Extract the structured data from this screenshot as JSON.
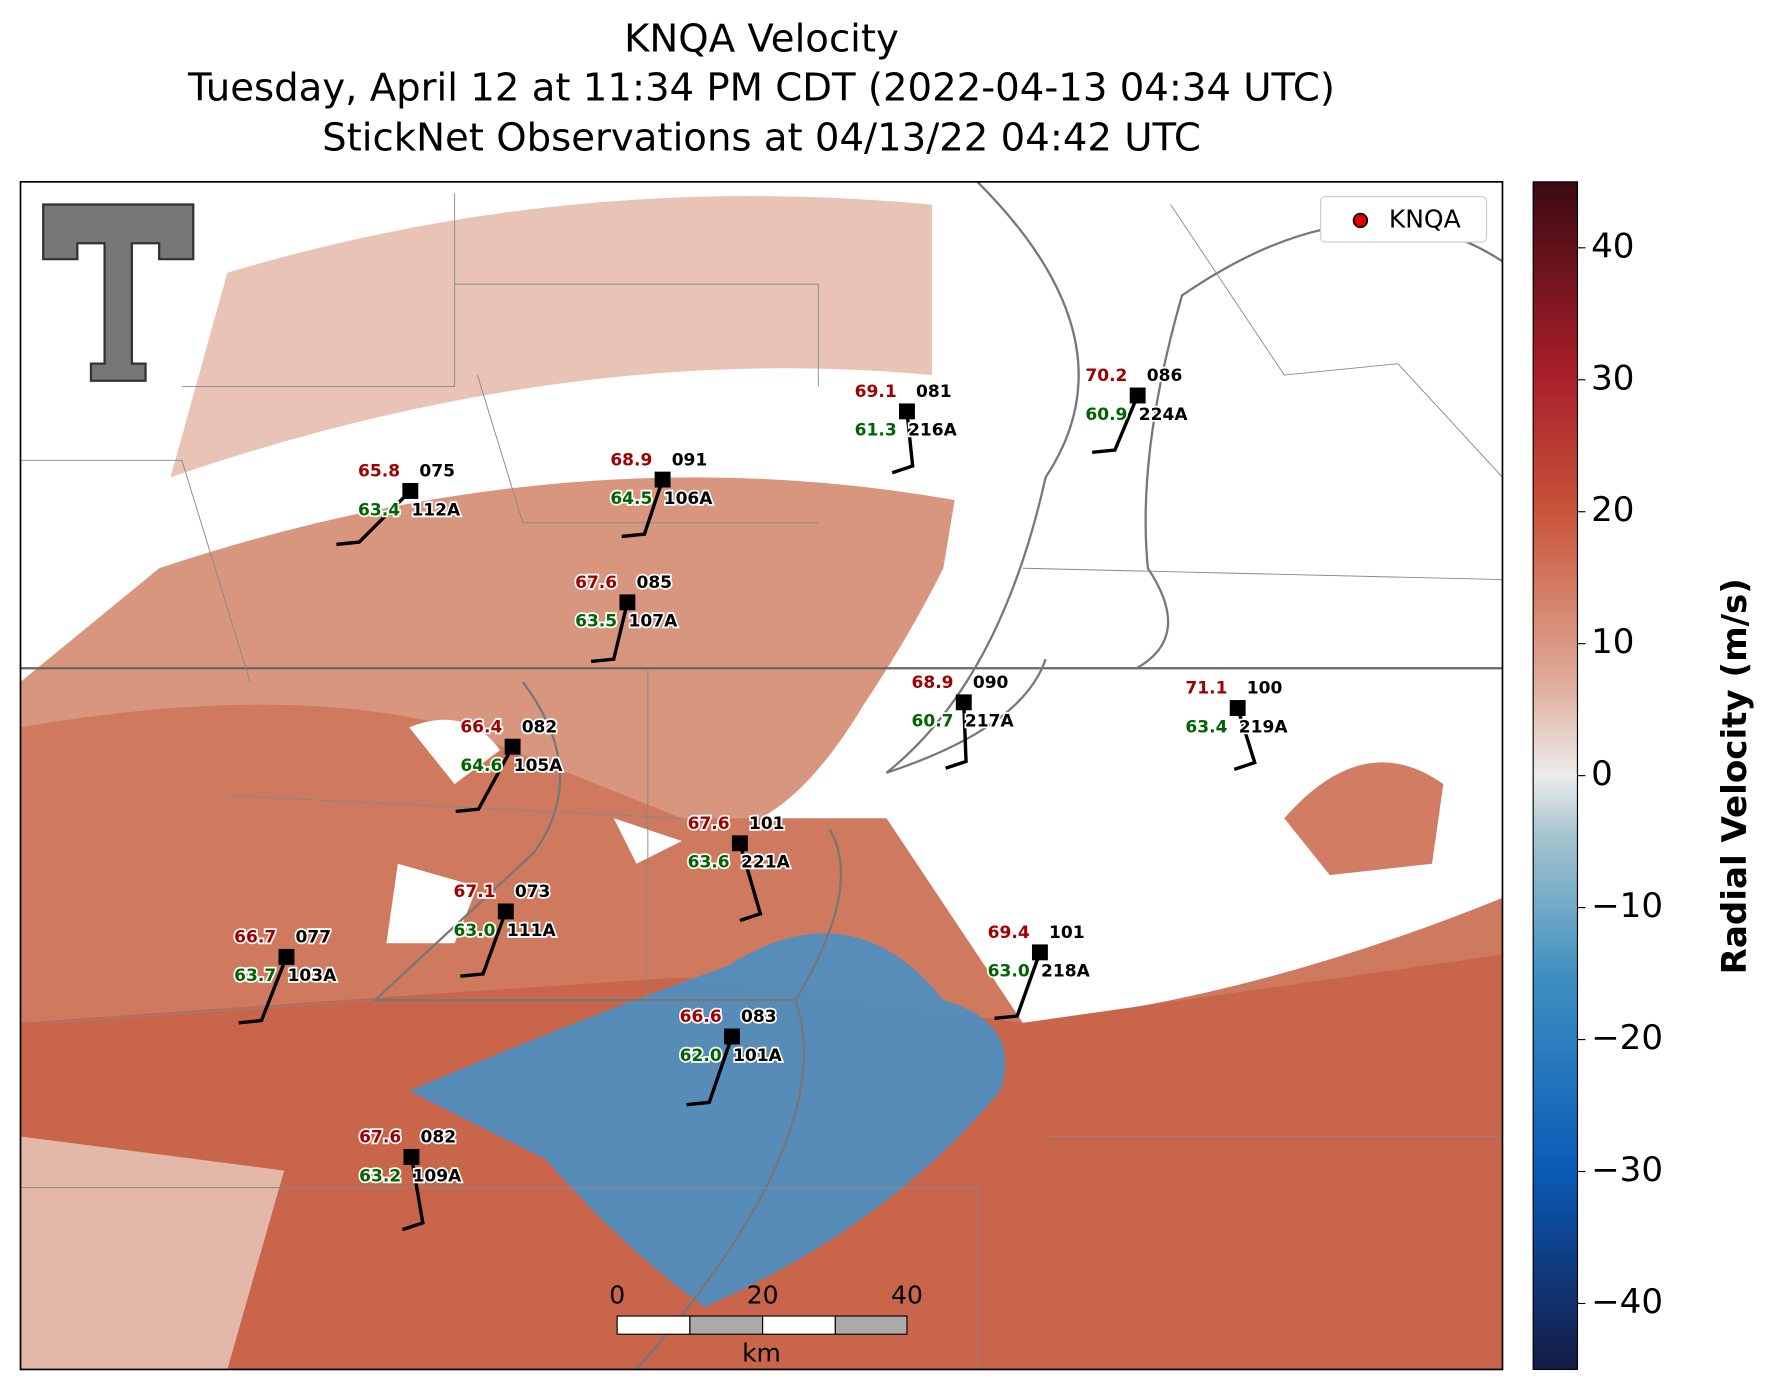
{
  "header": {
    "title_lines": [
      "KNQA Velocity",
      "Tuesday, April 12 at 11:34 PM CDT (2022-04-13 04:34 UTC)",
      "StickNet Observations at 04/13/22 04:42 UTC"
    ]
  },
  "legend": {
    "label": "KNQA",
    "color": "#e00000"
  },
  "colorbar": {
    "label": "Radial Velocity (m/s)",
    "lim": [
      -45,
      45
    ],
    "ticks": [
      {
        "value": -40,
        "label": "−40"
      },
      {
        "value": -30,
        "label": "−30"
      },
      {
        "value": -20,
        "label": "−20"
      },
      {
        "value": -10,
        "label": "−10"
      },
      0,
      10,
      20,
      30,
      40
    ]
  },
  "scale_bar": {
    "ticks": [
      "0",
      "20",
      "40"
    ],
    "unit": "km"
  },
  "stations": [
    {
      "id": "112A",
      "temp": "65.8",
      "dewpoint": "63.4",
      "direction": "075"
    },
    {
      "id": "106A",
      "temp": "68.9",
      "dewpoint": "64.5",
      "direction": "091"
    },
    {
      "id": "216A",
      "temp": "69.1",
      "dewpoint": "61.3",
      "direction": "081"
    },
    {
      "id": "224A",
      "temp": "70.2",
      "dewpoint": "60.9",
      "direction": "086"
    },
    {
      "id": "107A",
      "temp": "67.6",
      "dewpoint": "63.5",
      "direction": "085"
    },
    {
      "id": "217A",
      "temp": "68.9",
      "dewpoint": "60.7",
      "direction": "090"
    },
    {
      "id": "219A",
      "temp": "71.1",
      "dewpoint": "63.4",
      "direction": "100"
    },
    {
      "id": "105A",
      "temp": "66.4",
      "dewpoint": "64.6",
      "direction": "082"
    },
    {
      "id": "221A",
      "temp": "67.6",
      "dewpoint": "63.6",
      "direction": "101"
    },
    {
      "id": "111A",
      "temp": "67.1",
      "dewpoint": "63.0",
      "direction": "073"
    },
    {
      "id": "103A",
      "temp": "66.7",
      "dewpoint": "63.7",
      "direction": "077"
    },
    {
      "id": "218A",
      "temp": "69.4",
      "dewpoint": "63.0",
      "direction": "101"
    },
    {
      "id": "101A",
      "temp": "66.6",
      "dewpoint": "62.0",
      "direction": "083"
    },
    {
      "id": "109A",
      "temp": "67.6",
      "dewpoint": "63.2",
      "direction": "082"
    }
  ]
}
